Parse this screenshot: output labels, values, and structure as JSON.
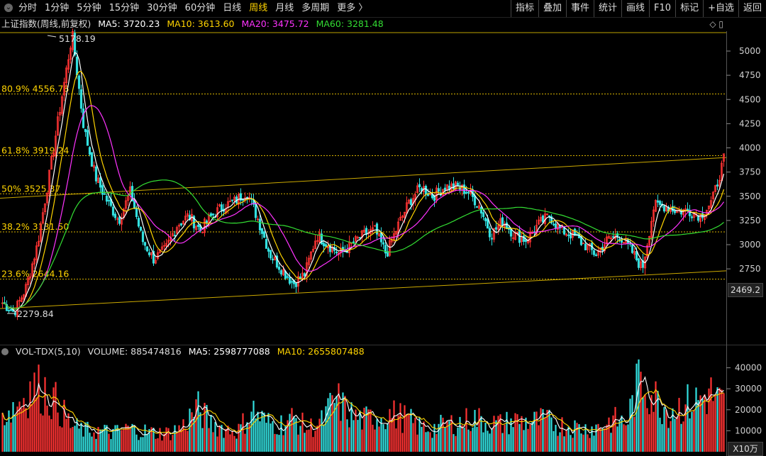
{
  "toolbar": {
    "periods": [
      "分时",
      "1分钟",
      "5分钟",
      "15分钟",
      "30分钟",
      "60分钟",
      "日线",
      "周线",
      "月线",
      "多周期",
      "更多 〉"
    ],
    "active_period": "周线",
    "right_buttons": [
      "指标",
      "叠加",
      "事件",
      "统计",
      "画线",
      "F10",
      "标记",
      "+自选",
      "返回"
    ]
  },
  "price_legend": {
    "title": "上证指数(周线,前复权)",
    "ma5": "MA5: 3720.23",
    "ma10": "MA10: 3613.60",
    "ma20": "MA20: 3475.72",
    "ma60": "MA60: 3281.48"
  },
  "volume_legend": {
    "title": "VOL-TDX(5,10)",
    "volume": "VOLUME: 885474816",
    "ma5": "MA5: 2598777088",
    "ma10": "MA10: 2655807488"
  },
  "last_price_label": "2469.2",
  "volume_unit": "X10万",
  "colors": {
    "up": "#ff3333",
    "down": "#33e0e0",
    "ma5": "#ffffff",
    "ma10": "#ffd400",
    "ma20": "#ff33ff",
    "ma60": "#33dd33",
    "fib": "#ffd400",
    "channel": "#ffd400"
  },
  "chart_data": {
    "type": "line",
    "price_axis": {
      "ticks": [
        2750,
        3000,
        3250,
        3500,
        3750,
        4000,
        4250,
        4500,
        4750,
        5000
      ],
      "ylim": [
        2250,
        5250
      ]
    },
    "volume_axis": {
      "ticks": [
        10000,
        20000,
        30000,
        40000
      ],
      "ylim": [
        0,
        45000
      ],
      "unit": "X10万"
    },
    "annotations": {
      "high": "5178.19",
      "low": "2279.84"
    },
    "fibonacci_levels": [
      {
        "label": "80.9% 4556.78",
        "value": 4556.78
      },
      {
        "label": "61.8% 3919.24",
        "value": 3919.24
      },
      {
        "label": "50% 3525.37",
        "value": 3525.37
      },
      {
        "label": "38.2% 3131.50",
        "value": 3131.5
      },
      {
        "label": "23.6% 2644.16",
        "value": 2644.16
      }
    ],
    "channel_lines": [
      {
        "name": "upper",
        "start": 3480,
        "end": 3900
      },
      {
        "name": "lower",
        "start": 2340,
        "end": 2730
      }
    ],
    "close_anchors": [
      2400,
      2300,
      2550,
      3000,
      3700,
      4450,
      5178,
      4200,
      3700,
      3450,
      3250,
      3550,
      3050,
      2850,
      2950,
      3200,
      3300,
      3150,
      3300,
      3400,
      3450,
      3550,
      3250,
      2900,
      2750,
      2600,
      2700,
      3100,
      3000,
      2900,
      3000,
      3100,
      3150,
      2900,
      3200,
      3450,
      3600,
      3500,
      3600,
      3600,
      3550,
      3400,
      3100,
      3250,
      3100,
      3050,
      3200,
      3300,
      3150,
      3100,
      3000,
      2900,
      3050,
      3100,
      2950,
      2750,
      3400,
      3400,
      3350,
      3350,
      3300,
      3450,
      3880
    ],
    "volume_anchors": [
      18000,
      22000,
      30000,
      30000,
      22000,
      12000,
      10000,
      10000,
      9000,
      11000,
      10000,
      9000,
      9000,
      12000,
      21000,
      14000,
      11000,
      10000,
      20000,
      14000,
      13000,
      16000,
      11000,
      14000,
      25000,
      18000,
      15000,
      17000,
      18000,
      16000,
      12000,
      11000,
      13000,
      14000,
      16000,
      14000,
      13000,
      15000,
      14000,
      15000,
      13000,
      12000,
      11000,
      12000,
      15000,
      14000,
      36000,
      26000,
      20000,
      22000,
      24000,
      28000,
      22000
    ]
  }
}
